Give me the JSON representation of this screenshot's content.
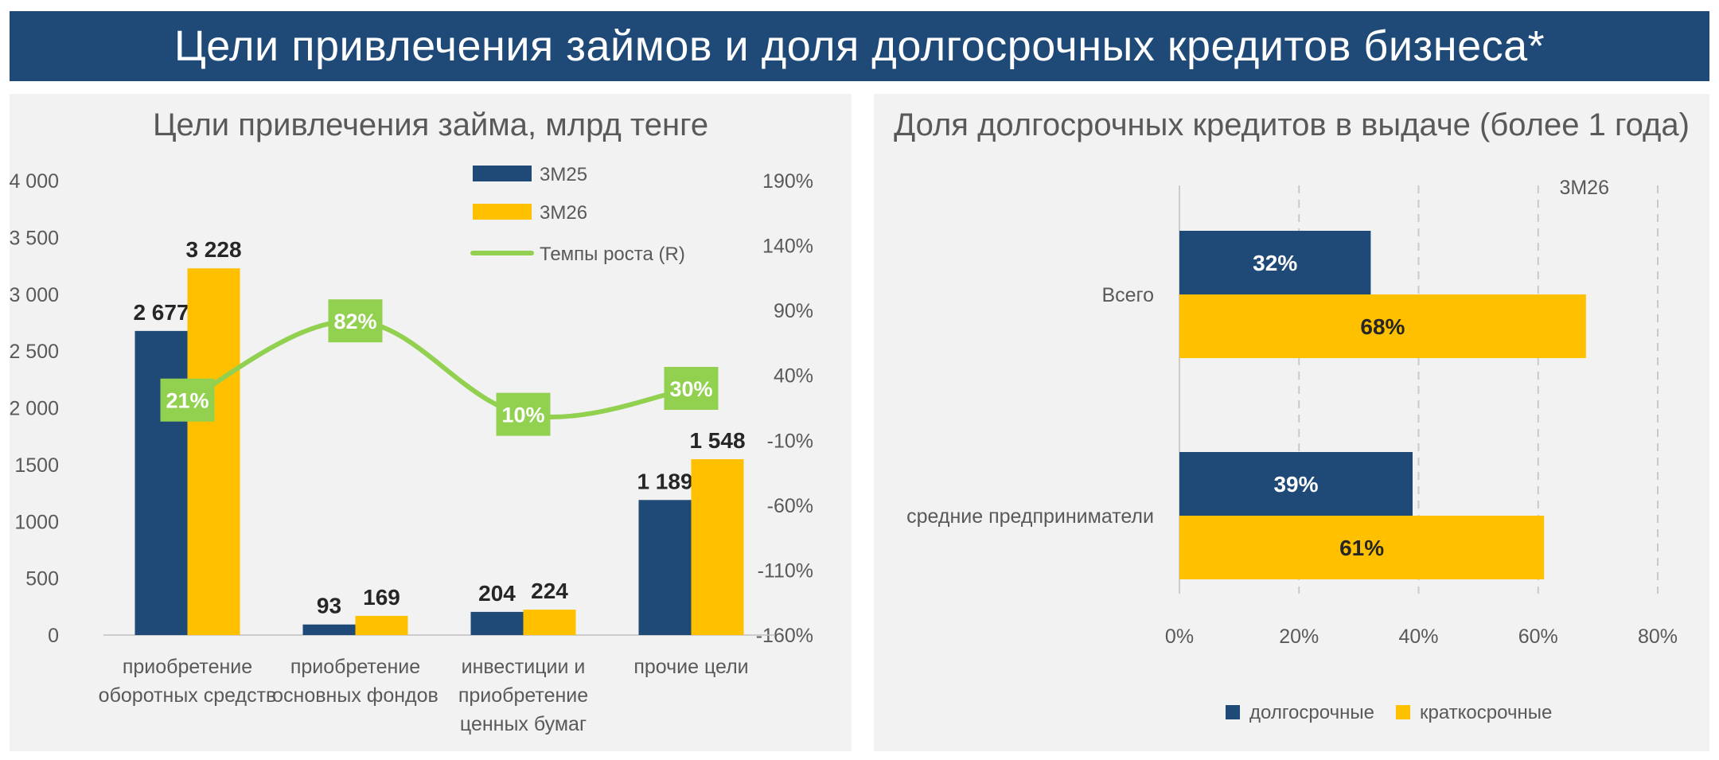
{
  "page": {
    "title": "Цели привлечения займов и доля долгосрочных кредитов бизнеса*"
  },
  "colors": {
    "navy": "#1f4a78",
    "yellow": "#ffc000",
    "green": "#92d050",
    "text": "#404040",
    "axis": "#595959"
  },
  "chart_data": [
    {
      "type": "bar",
      "title": "Цели привлечения займа, млрд тенге",
      "categories": [
        [
          "приобретение",
          "оборотных средств"
        ],
        [
          "приобретение",
          "основных фондов"
        ],
        [
          "инвестиции и",
          "приобретение",
          "ценных бумаг"
        ],
        [
          "прочие цели"
        ]
      ],
      "series": [
        {
          "name": "3М25",
          "color": "#1f4a78",
          "values": [
            2677,
            93,
            204,
            1189
          ],
          "labels": [
            "2 677",
            "93",
            "204",
            "1 189"
          ]
        },
        {
          "name": "3М26",
          "color": "#ffc000",
          "values": [
            3228,
            169,
            224,
            1548
          ],
          "labels": [
            "3 228",
            "169",
            "224",
            "1 548"
          ]
        }
      ],
      "line_series": {
        "name": "Темпы роста (R)",
        "color": "#92d050",
        "axis": "right",
        "values": [
          21,
          82,
          10,
          30
        ],
        "labels": [
          "21%",
          "82%",
          "10%",
          "30%"
        ]
      },
      "ylim": [
        0,
        4000
      ],
      "yticks": [
        0,
        500,
        1000,
        1500,
        2000,
        2500,
        3000,
        3500,
        4000
      ],
      "ytick_labels": [
        "0",
        "500",
        "1000",
        "1500",
        "2 000",
        "2 500",
        "3 000",
        "3 500",
        "4 000"
      ],
      "y2lim": [
        -160,
        190
      ],
      "y2ticks": [
        -160,
        -110,
        -60,
        -10,
        40,
        90,
        140,
        190
      ],
      "y2tick_labels": [
        "-160%",
        "-110%",
        "-60%",
        "-10%",
        "40%",
        "90%",
        "140%",
        "190%"
      ],
      "legend_position": "top"
    },
    {
      "type": "bar",
      "orientation": "horizontal",
      "title": "Доля долгосрочных кредитов в выдаче (более 1 года)",
      "annotation": "3М26",
      "categories": [
        "Всего",
        "средние предприниматели"
      ],
      "series": [
        {
          "name": "долгосрочные",
          "color": "#1f4a78",
          "values": [
            32,
            39
          ],
          "labels": [
            "32%",
            "39%"
          ]
        },
        {
          "name": "краткосрочные",
          "color": "#ffc000",
          "values": [
            68,
            61
          ],
          "labels": [
            "68%",
            "61%"
          ]
        }
      ],
      "xlim": [
        0,
        80
      ],
      "xticks": [
        0,
        20,
        40,
        60,
        80
      ],
      "xtick_labels": [
        "0%",
        "20%",
        "40%",
        "60%",
        "80%"
      ],
      "grid": true,
      "legend_position": "bottom"
    }
  ]
}
